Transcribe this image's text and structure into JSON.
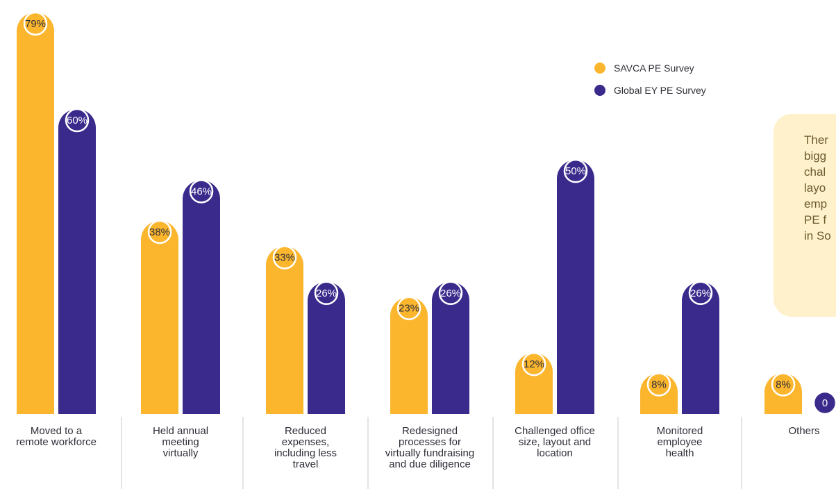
{
  "chart_data": {
    "type": "bar",
    "categories": [
      [
        "Moved to a",
        "remote workforce"
      ],
      [
        "Held annual",
        "meeting",
        "virtually"
      ],
      [
        "Reduced",
        "expenses,",
        "including less",
        "travel"
      ],
      [
        "Redesigned",
        "processes for",
        "virtually fundraising",
        "and due diligence"
      ],
      [
        "Challenged office",
        "size, layout and",
        "location"
      ],
      [
        "Monitored",
        "employee",
        "health"
      ],
      [
        "Others"
      ]
    ],
    "series": [
      {
        "name": "SAVCA PE Survey",
        "color": "#fbb62e",
        "values": [
          79,
          38,
          33,
          23,
          12,
          8,
          8
        ],
        "labels": [
          "79%",
          "38%",
          "33%",
          "23%",
          "12%",
          "8%",
          "8%"
        ]
      },
      {
        "name": "Global EY PE Survey",
        "color": "#3a2a8c",
        "values": [
          60,
          46,
          26,
          26,
          50,
          26,
          0
        ],
        "labels": [
          "60%",
          "46%",
          "26%",
          "26%",
          "50%",
          "26%",
          "0"
        ]
      }
    ],
    "ylim": [
      0,
      79
    ],
    "grid": false,
    "legend_position": "top-right"
  },
  "callout": {
    "lines": [
      "Ther",
      "bigg",
      "chal",
      "layo",
      "emp",
      "PE f",
      "in So"
    ]
  }
}
